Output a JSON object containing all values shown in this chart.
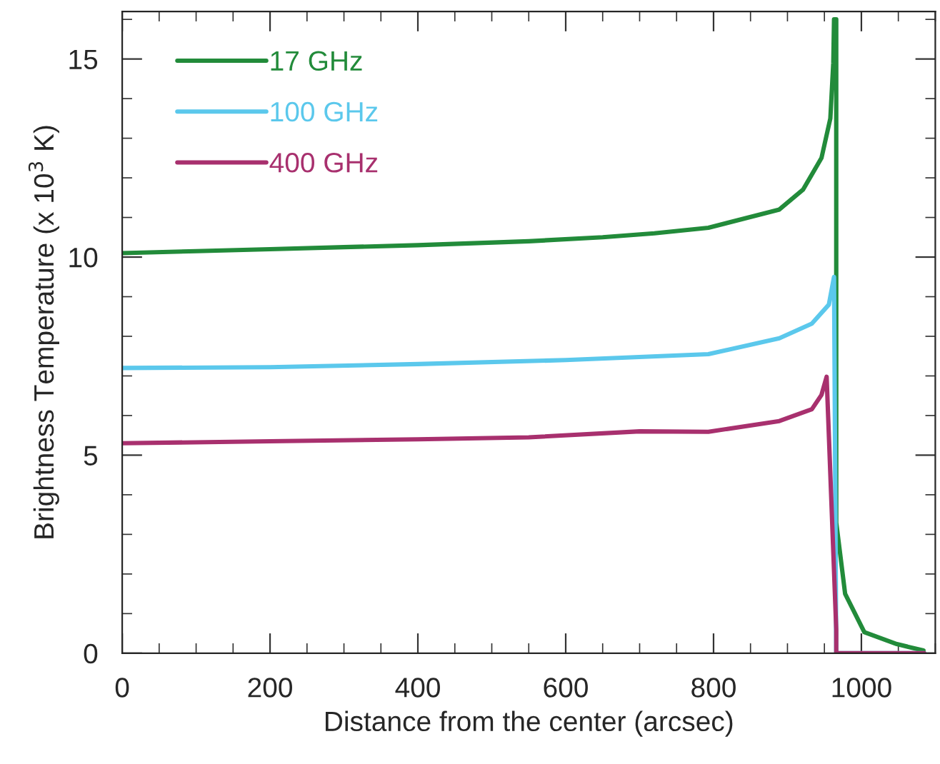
{
  "chart_data": {
    "type": "line",
    "xlabel": "Distance from the center (arcsec)",
    "ylabel": "Brightness Temperature (x 10$^{3}$ K)",
    "xlim": [
      0,
      1100
    ],
    "xticks": [
      0,
      200,
      400,
      600,
      800,
      1000
    ],
    "ylim": [
      0,
      16.2
    ],
    "yticks": [
      0,
      5,
      10,
      15
    ],
    "legend": "top left",
    "grid": false,
    "marker": "none",
    "line_style": "solid",
    "series": [
      {
        "name": "17 GHz",
        "color": "#228b3a",
        "x": [
          0,
          100,
          200,
          300,
          400,
          550,
          650,
          720,
          793,
          889,
          921,
          946,
          958,
          962,
          963,
          966,
          966,
          978,
          1004,
          1048,
          1084
        ],
        "values": [
          10.1,
          10.15,
          10.2,
          10.25,
          10.3,
          10.4,
          10.5,
          10.6,
          10.74,
          11.2,
          11.7,
          12.5,
          13.5,
          14.9,
          16.0,
          16.0,
          3.3,
          1.5,
          0.53,
          0.23,
          0.07
        ]
      },
      {
        "name": "100 GHz",
        "color": "#5bc8ec",
        "x": [
          0,
          200,
          400,
          600,
          793,
          889,
          933,
          956,
          963,
          966,
          1085
        ],
        "values": [
          7.2,
          7.22,
          7.3,
          7.4,
          7.55,
          7.95,
          8.32,
          8.8,
          9.5,
          0,
          0
        ]
      },
      {
        "name": "400 GHz",
        "color": "#a8306e",
        "x": [
          0,
          200,
          400,
          550,
          700,
          793,
          889,
          933,
          946,
          953,
          966,
          966,
          1085
        ],
        "values": [
          5.3,
          5.35,
          5.4,
          5.45,
          5.6,
          5.59,
          5.86,
          6.16,
          6.52,
          6.98,
          0.6,
          0,
          0
        ]
      }
    ]
  }
}
